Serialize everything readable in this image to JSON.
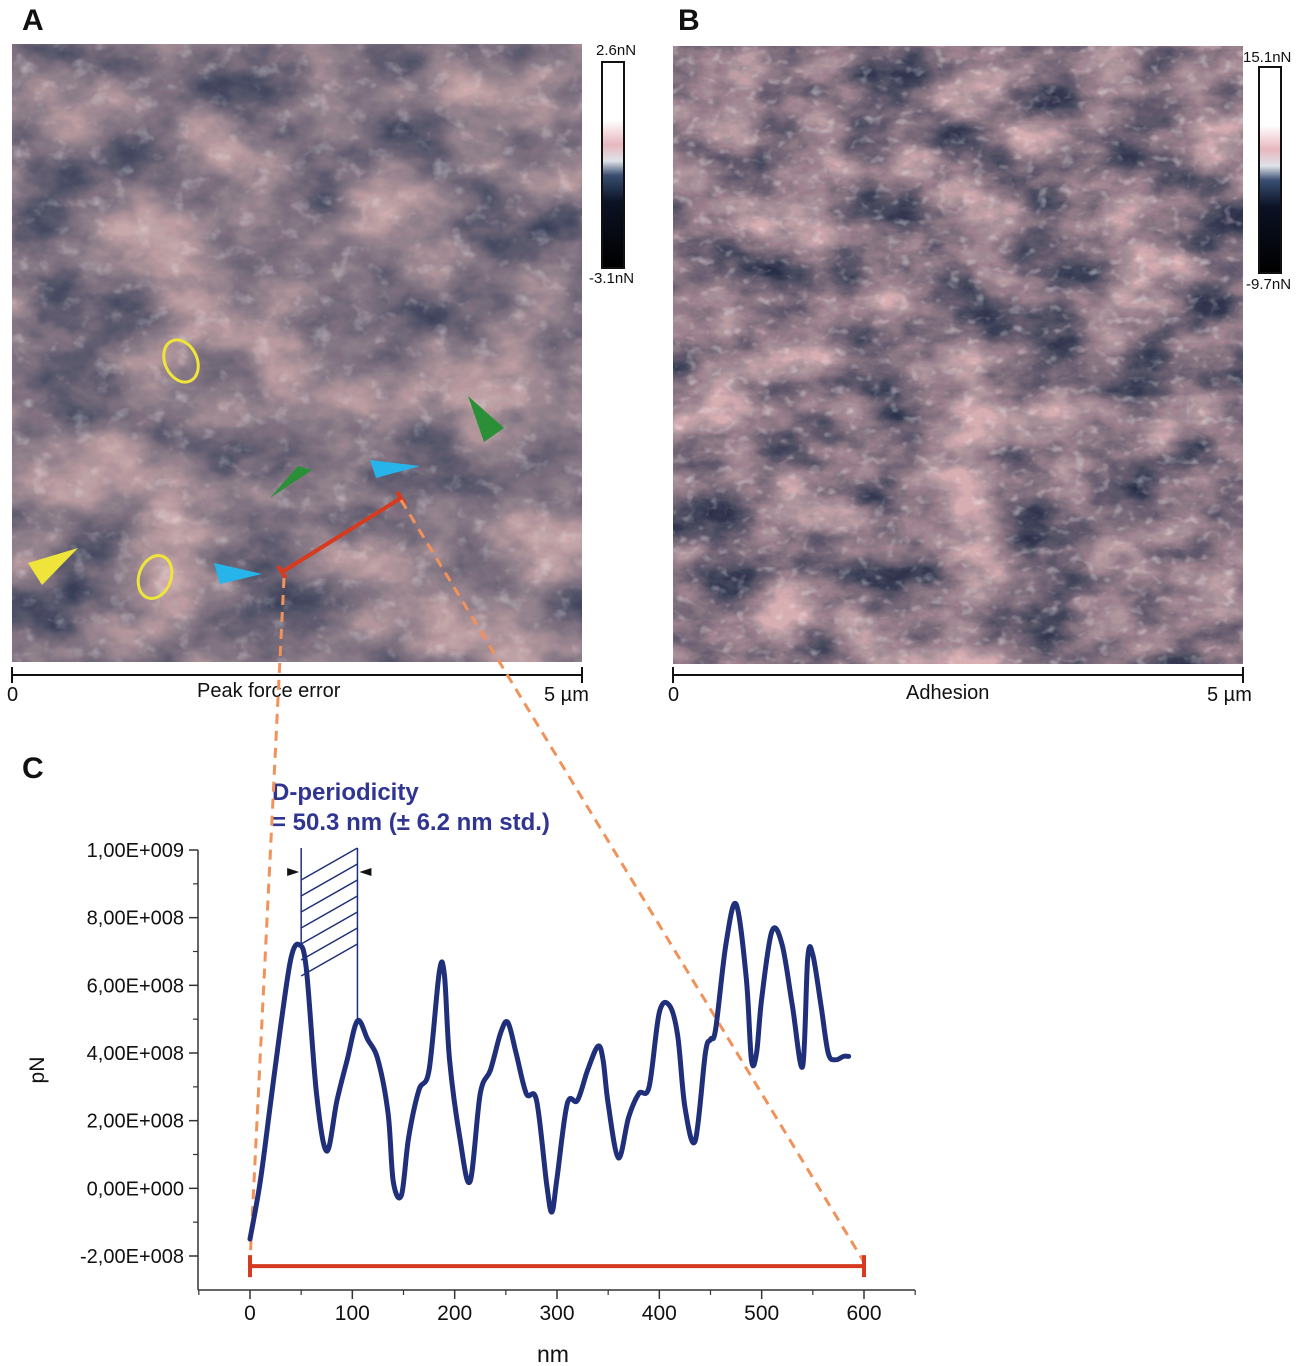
{
  "panels": {
    "A": {
      "letter": "A",
      "colorbar_max": "2.6nN",
      "colorbar_min": "-3.1nN",
      "scale_start": "0",
      "scale_end": "5 µm",
      "channel": "Peak force error"
    },
    "B": {
      "letter": "B",
      "colorbar_max": "15.1nN",
      "colorbar_min": "-9.7nN",
      "scale_start": "0",
      "scale_end": "5 µm",
      "channel": "Adhesion"
    },
    "C": {
      "letter": "C",
      "annotation_line1": "D-periodicity",
      "annotation_line2": "= 50.3 nm (± 6.2 nm std.)"
    }
  },
  "colors": {
    "profile_line": "#1f2f7a",
    "annotation_text": "#2f3590",
    "section_bar": "#d63a1f",
    "dashed_zoom": "#f0925a",
    "marker_cyan": "#27b4ea",
    "marker_green": "#2b8f38",
    "marker_yellow": "#efe53a",
    "afm_pink": "#d9b3b3",
    "afm_navy": "#1b2a48"
  },
  "chart_data": {
    "type": "line",
    "xlabel": "nm",
    "ylabel": "pN",
    "xlim": [
      -25,
      650
    ],
    "ylim": [
      -300000000,
      1000000000
    ],
    "x_ticks": [
      0,
      100,
      200,
      300,
      400,
      500,
      600
    ],
    "x_tick_labels": [
      "0",
      "100",
      "200",
      "300",
      "400",
      "500",
      "600"
    ],
    "y_ticks": [
      -200000000,
      0,
      200000000,
      400000000,
      600000000,
      800000000,
      1000000000
    ],
    "y_tick_labels": [
      "-2,00E+008",
      "0,00E+000",
      "2,00E+008",
      "4,00E+008",
      "6,00E+008",
      "8,00E+008",
      "1,00E+009"
    ],
    "series": [
      {
        "x": [
          0,
          10,
          20,
          30,
          40,
          48,
          55,
          65,
          75,
          85,
          95,
          105,
          115,
          125,
          135,
          140,
          148,
          155,
          165,
          175,
          185,
          190,
          195,
          205,
          215,
          225,
          235,
          245,
          252,
          260,
          270,
          280,
          290,
          295,
          300,
          310,
          320,
          330,
          340,
          345,
          350,
          360,
          370,
          380,
          390,
          400,
          410,
          418,
          425,
          435,
          445,
          450,
          455,
          465,
          475,
          485,
          490,
          495,
          500,
          510,
          520,
          530,
          540,
          545,
          550,
          558,
          565,
          572,
          580,
          585
        ],
        "y": [
          -150000000,
          20000000,
          250000000,
          480000000,
          680000000,
          720000000,
          650000000,
          280000000,
          110000000,
          260000000,
          380000000,
          495000000,
          440000000,
          380000000,
          220000000,
          20000000,
          -20000000,
          150000000,
          290000000,
          350000000,
          640000000,
          630000000,
          380000000,
          150000000,
          20000000,
          280000000,
          350000000,
          460000000,
          490000000,
          400000000,
          280000000,
          260000000,
          10000000,
          -70000000,
          30000000,
          250000000,
          260000000,
          350000000,
          420000000,
          380000000,
          250000000,
          90000000,
          210000000,
          280000000,
          300000000,
          520000000,
          540000000,
          450000000,
          240000000,
          140000000,
          400000000,
          440000000,
          470000000,
          720000000,
          840000000,
          620000000,
          380000000,
          400000000,
          560000000,
          760000000,
          720000000,
          540000000,
          360000000,
          680000000,
          690000000,
          540000000,
          400000000,
          380000000,
          390000000,
          390000000
        ]
      }
    ],
    "periodicity_markers_x": [
      50,
      105
    ],
    "section_bar_x": [
      0,
      600
    ],
    "section_bar_y": -230000000
  }
}
